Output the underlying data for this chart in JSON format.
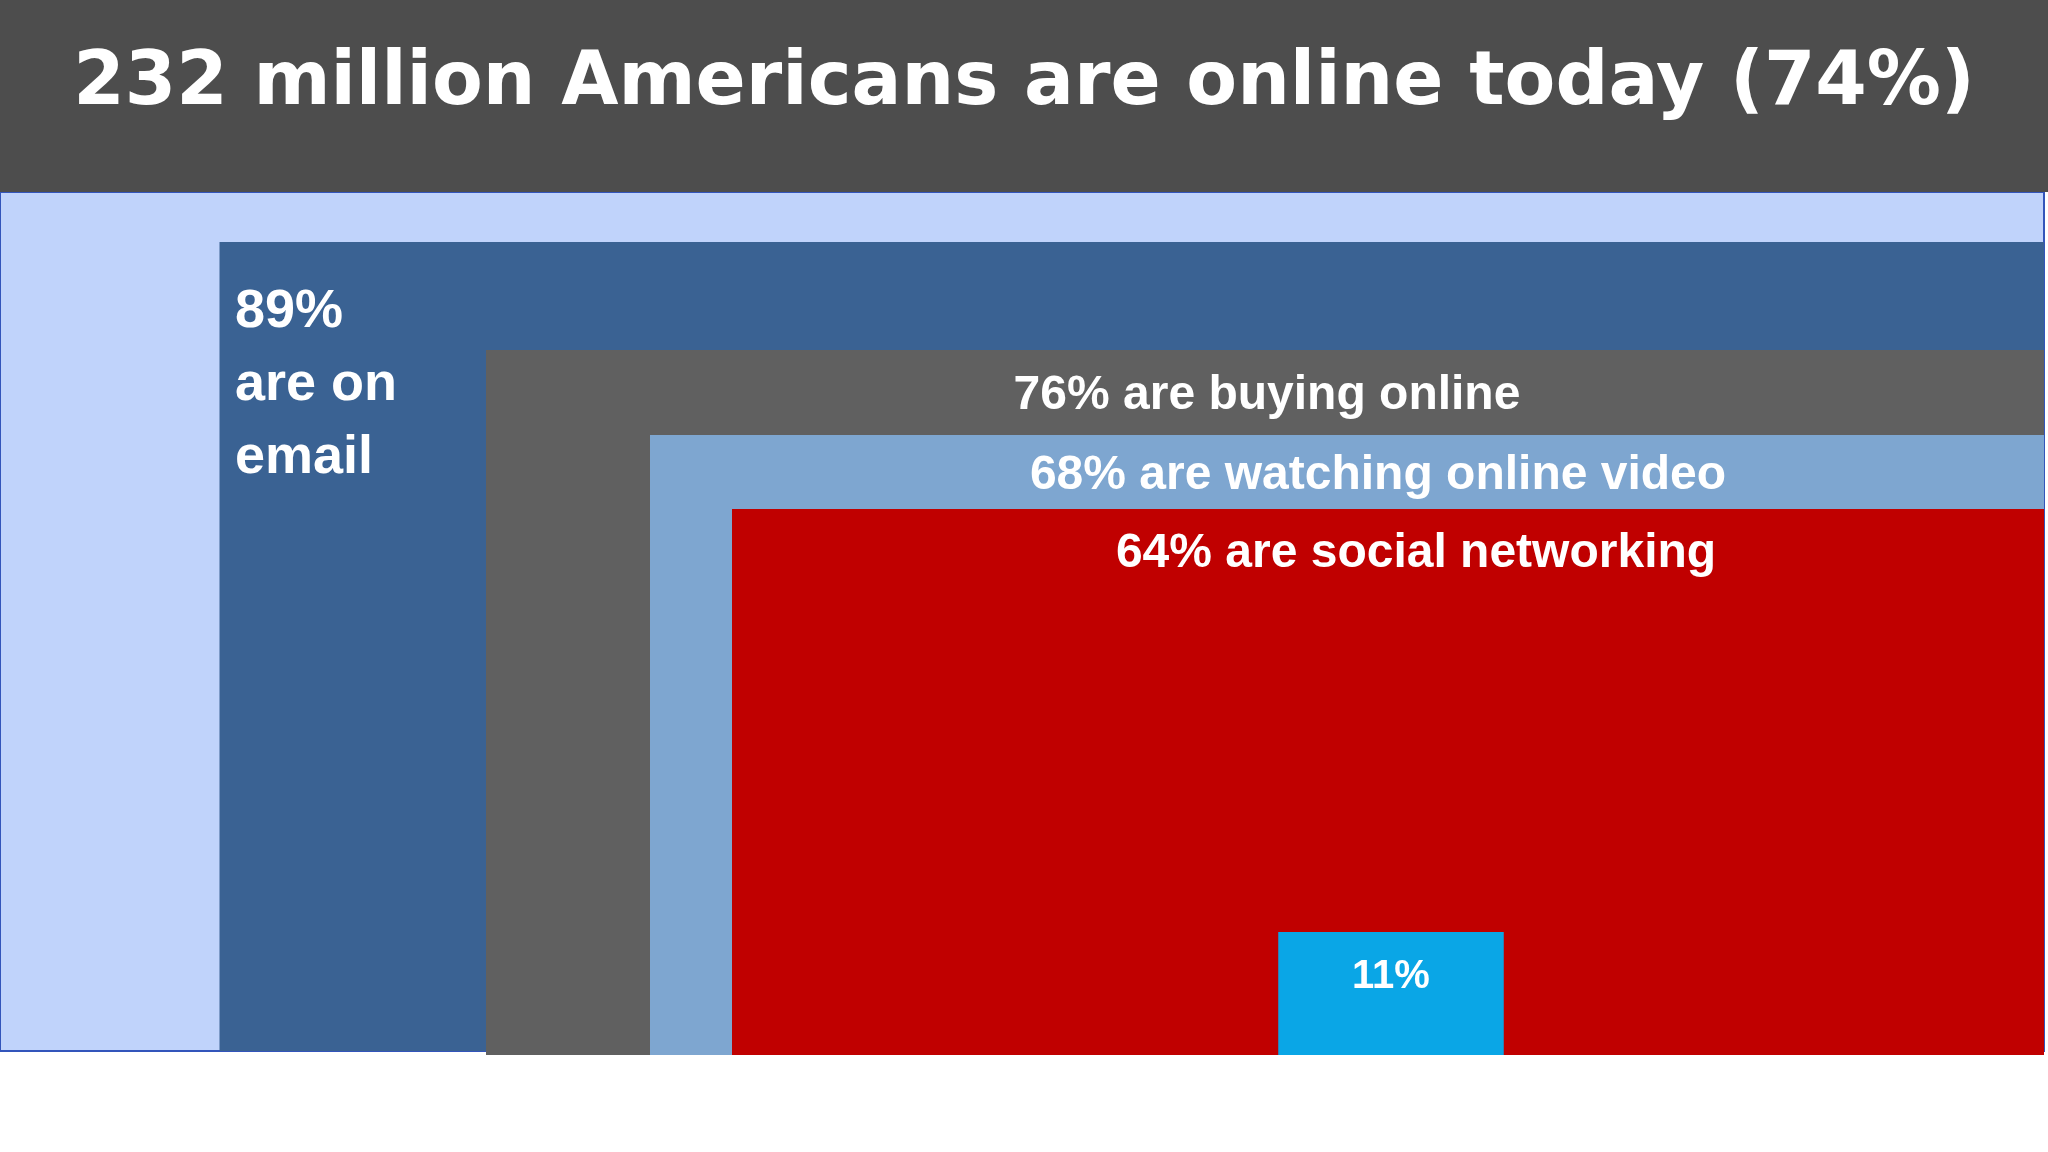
{
  "chart_data": {
    "type": "other",
    "title": "232 million Americans are online today (74%)",
    "categories": [
      "are on email",
      "are buying online",
      "are watching online video",
      "are social networking",
      null
    ],
    "values": [
      89,
      76,
      68,
      64,
      11
    ],
    "value_labels": [
      "89%",
      "76%",
      "68%",
      "64%",
      "11%"
    ],
    "colors": [
      "#3a6293",
      "#606060",
      "#7ea6d0",
      "#c00000",
      "#0aa6e6"
    ]
  }
}
